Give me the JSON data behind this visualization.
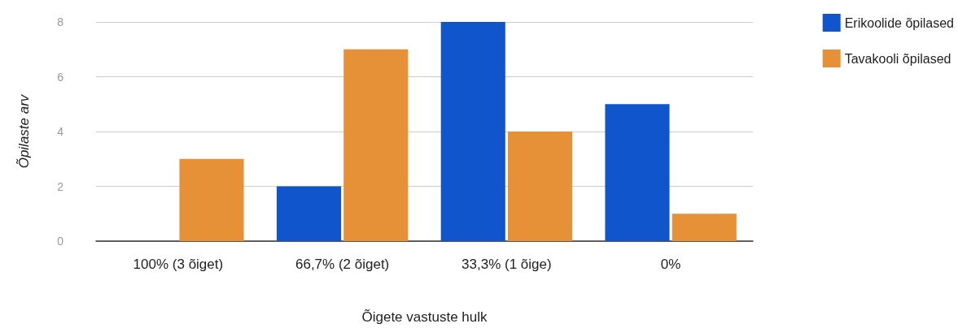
{
  "chart_data": {
    "type": "bar",
    "xlabel": "Õigete vastuste hulk",
    "ylabel": "Õpilaste arv",
    "categories": [
      "100% (3 õiget)",
      "66,7% (2 õiget)",
      "33,3% (1 õige)",
      "0%"
    ],
    "series": [
      {
        "name": "Erikoolide õpilased",
        "color": "#1155cc",
        "values": [
          0,
          2,
          8,
          5
        ]
      },
      {
        "name": "Tavakooli õpilased",
        "color": "#e69138",
        "values": [
          3,
          7,
          4,
          1
        ]
      }
    ],
    "ylim": [
      0,
      8
    ],
    "yticks": [
      0,
      2,
      4,
      6,
      8
    ],
    "grid": "y",
    "legend": "right"
  }
}
